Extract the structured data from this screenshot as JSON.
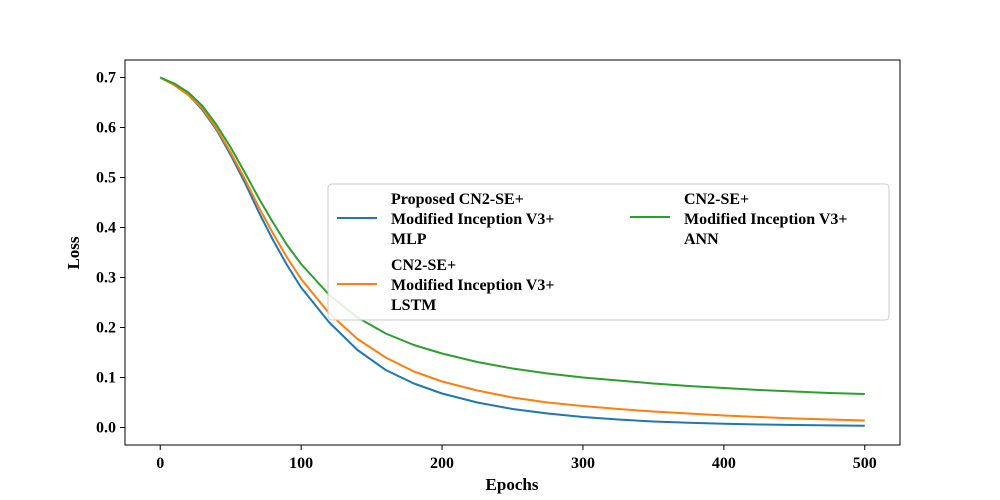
{
  "chart_data": {
    "type": "line",
    "xlabel": "Epochs",
    "ylabel": "Loss",
    "xlim": [
      -25,
      525
    ],
    "ylim": [
      -0.035,
      0.735
    ],
    "xticks": [
      0,
      100,
      200,
      300,
      400,
      500
    ],
    "yticks": [
      0.0,
      0.1,
      0.2,
      0.3,
      0.4,
      0.5,
      0.6,
      0.7
    ],
    "xtick_labels": [
      "0",
      "100",
      "200",
      "300",
      "400",
      "500"
    ],
    "ytick_labels": [
      "0.0",
      "0.1",
      "0.2",
      "0.3",
      "0.4",
      "0.5",
      "0.6",
      "0.7"
    ],
    "grid": false,
    "legend_position": "center-right",
    "x": [
      0,
      10,
      20,
      30,
      40,
      50,
      60,
      70,
      80,
      90,
      100,
      120,
      140,
      160,
      180,
      200,
      225,
      250,
      275,
      300,
      325,
      350,
      375,
      400,
      425,
      450,
      475,
      500
    ],
    "series": [
      {
        "name": "Proposed CN2-SE+ Modified Inception V3+ MLP",
        "name_lines": [
          "Proposed CN2-SE+",
          "Modified Inception V3+",
          "MLP"
        ],
        "color": "#1f77b4",
        "values": [
          0.7,
          0.685,
          0.665,
          0.635,
          0.595,
          0.545,
          0.49,
          0.43,
          0.375,
          0.325,
          0.28,
          0.21,
          0.155,
          0.115,
          0.088,
          0.068,
          0.05,
          0.037,
          0.028,
          0.021,
          0.016,
          0.012,
          0.0095,
          0.0075,
          0.006,
          0.005,
          0.0042,
          0.0035
        ]
      },
      {
        "name": "CN2-SE+ Modified Inception V3+ LSTM",
        "name_lines": [
          "CN2-SE+",
          "Modified Inception V3+",
          "LSTM"
        ],
        "color": "#ff7f0e",
        "values": [
          0.7,
          0.685,
          0.665,
          0.638,
          0.598,
          0.55,
          0.497,
          0.44,
          0.388,
          0.34,
          0.297,
          0.228,
          0.177,
          0.14,
          0.112,
          0.092,
          0.074,
          0.06,
          0.05,
          0.043,
          0.037,
          0.032,
          0.028,
          0.024,
          0.021,
          0.018,
          0.016,
          0.014
        ]
      },
      {
        "name": "CN2-SE+ Modified Inception V3+ ANN",
        "name_lines": [
          "CN2-SE+",
          "Modified Inception V3+",
          "ANN"
        ],
        "color": "#2ca02c",
        "values": [
          0.7,
          0.688,
          0.67,
          0.643,
          0.605,
          0.56,
          0.51,
          0.458,
          0.41,
          0.365,
          0.327,
          0.265,
          0.22,
          0.188,
          0.165,
          0.148,
          0.131,
          0.118,
          0.108,
          0.1,
          0.094,
          0.088,
          0.083,
          0.079,
          0.075,
          0.072,
          0.069,
          0.067
        ]
      }
    ]
  }
}
